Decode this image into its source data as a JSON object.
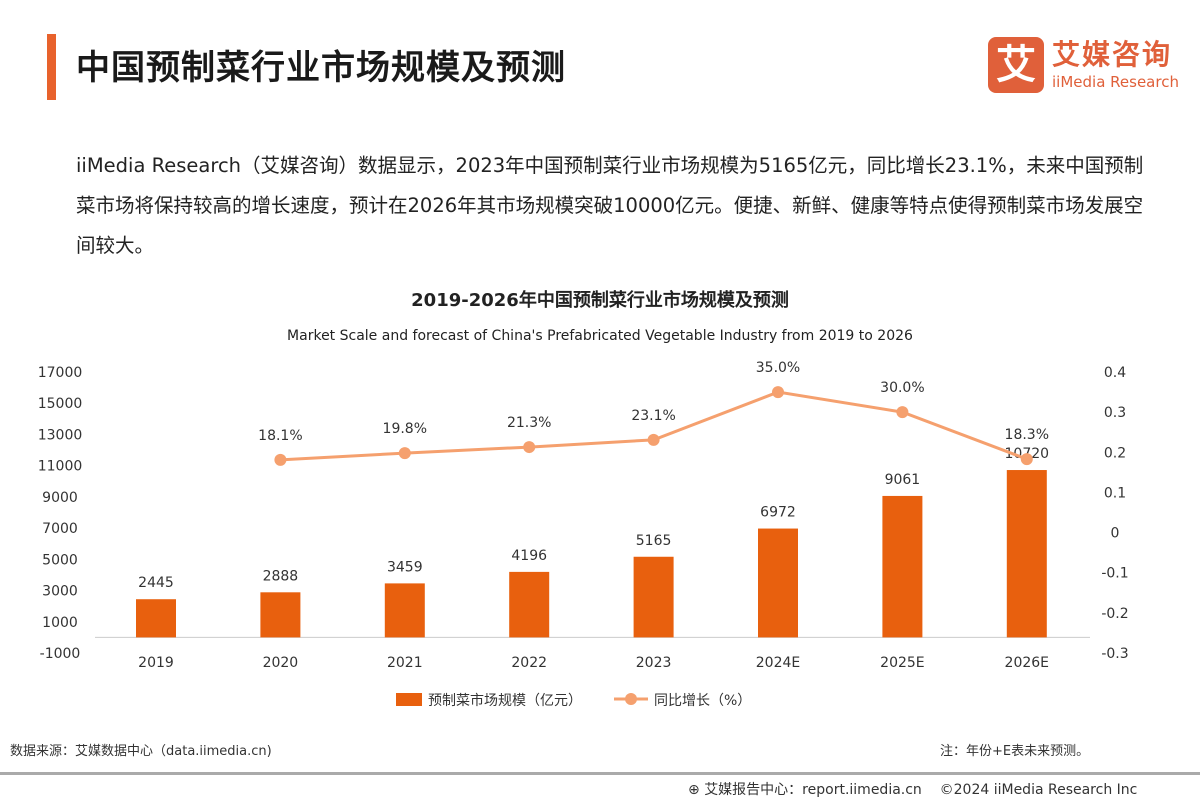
{
  "header": {
    "title": "中国预制菜行业市场规模及预测",
    "logo_cn": "艾媒咨询",
    "logo_en": "iiMedia Research",
    "logo_mark": "艾"
  },
  "paragraph": "iiMedia Research（艾媒咨询）数据显示，2023年中国预制菜行业市场规模为5165亿元，同比增长23.1%，未来中国预制菜市场将保持较高的增长速度，预计在2026年其市场规模突破10000亿元。便捷、新鲜、健康等特点使得预制菜市场发展空间较大。",
  "chart_data": {
    "type": "bar+line",
    "title": "2019-2026年中国预制菜行业市场规模及预测",
    "subtitle": "Market Scale and forecast of China's Prefabricated Vegetable Industry from 2019 to 2026",
    "categories": [
      "2019",
      "2020",
      "2021",
      "2022",
      "2023",
      "2024E",
      "2025E",
      "2026E"
    ],
    "series": [
      {
        "name": "预制菜市场规模（亿元）",
        "type": "bar",
        "axis": "left",
        "color": "#e8600e",
        "values": [
          2445,
          2888,
          3459,
          4196,
          5165,
          6972,
          9061,
          10720
        ]
      },
      {
        "name": "同比增长（%）",
        "type": "line",
        "axis": "right",
        "color": "#f5a06e",
        "values": [
          null,
          0.181,
          0.198,
          0.213,
          0.231,
          0.35,
          0.3,
          0.183
        ],
        "labels": [
          null,
          "18.1%",
          "19.8%",
          "21.3%",
          "23.1%",
          "35.0%",
          "30.0%",
          "18.3%"
        ]
      }
    ],
    "left_ticks": [
      "17000",
      "15000",
      "13000",
      "11000",
      "9000",
      "7000",
      "5000",
      "3000",
      "1000",
      "-1000"
    ],
    "right_ticks": [
      "0.4",
      "0.3",
      "0.2",
      "0.1",
      "0",
      "-0.1",
      "-0.2",
      "-0.3"
    ],
    "ylim_left": [
      -1000,
      17000
    ],
    "ylim_right": [
      -0.3,
      0.4
    ],
    "grid": false,
    "legend": "bottom"
  },
  "footer": {
    "source": "数据来源：艾媒数据中心（data.iimedia.cn)",
    "note": "注：年份+E表未来预测。",
    "report": "艾媒报告中心：report.iimedia.cn",
    "copyright": "©2024  iiMedia Research  Inc"
  }
}
